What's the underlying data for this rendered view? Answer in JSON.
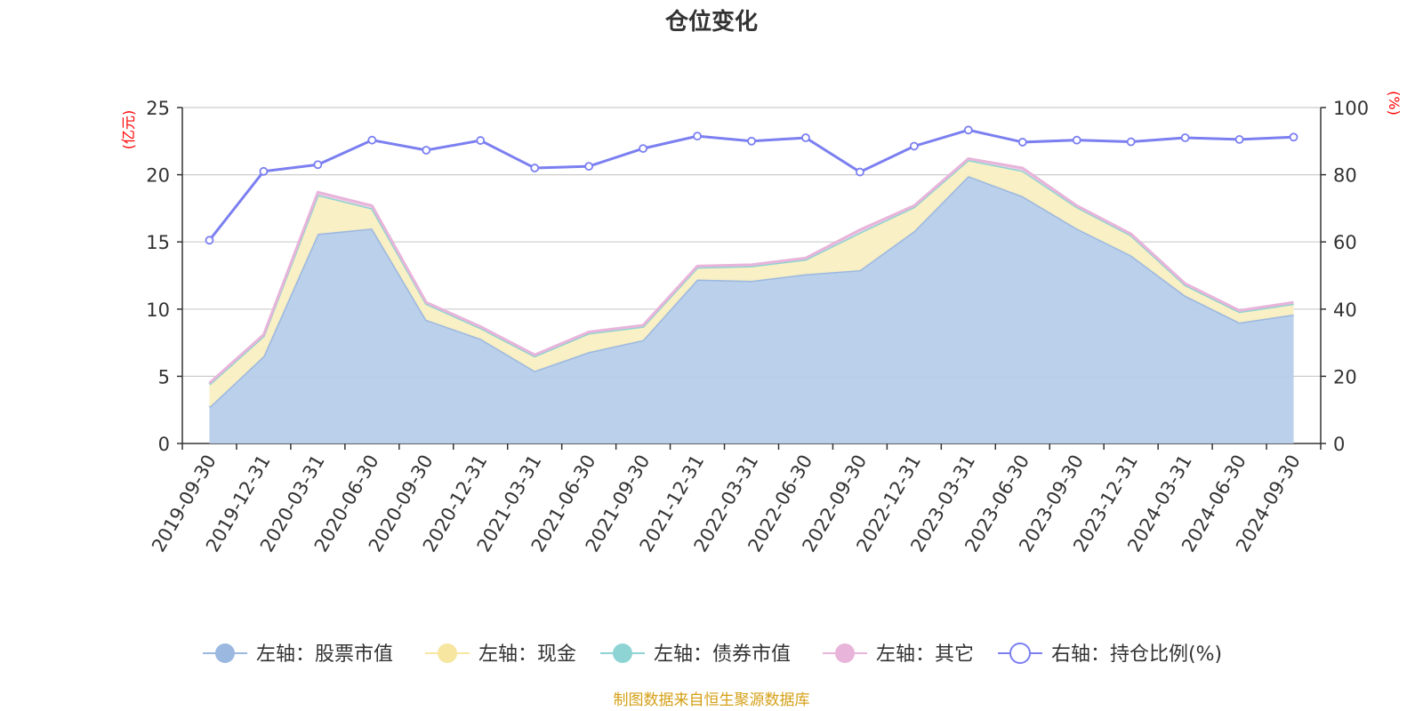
{
  "chart_data": {
    "type": "area",
    "title": "仓位变化",
    "left_axis": {
      "unit": "(亿元)",
      "ylim": [
        0,
        25
      ],
      "ticks": [
        "0",
        "5",
        "10",
        "15",
        "20",
        "25"
      ]
    },
    "right_axis": {
      "unit": "(%)",
      "ylim": [
        0,
        100
      ],
      "ticks": [
        "0",
        "20",
        "40",
        "60",
        "80",
        "100"
      ]
    },
    "categories": [
      "2019-09-30",
      "2019-12-31",
      "2020-03-31",
      "2020-06-30",
      "2020-09-30",
      "2020-12-31",
      "2021-03-31",
      "2021-06-30",
      "2021-09-30",
      "2021-12-31",
      "2022-03-31",
      "2022-06-30",
      "2022-09-30",
      "2022-12-31",
      "2023-03-31",
      "2023-06-30",
      "2023-09-30",
      "2023-12-31",
      "2024-03-31",
      "2024-06-30",
      "2024-09-30"
    ],
    "series": [
      {
        "name": "左轴：股票市值",
        "axis": "left",
        "kind": "stacked-area",
        "color": "#9bb8e0",
        "fill": "#b7cdea",
        "values": [
          2.7,
          6.5,
          15.6,
          16.0,
          9.2,
          7.8,
          5.4,
          6.8,
          7.7,
          12.2,
          12.1,
          12.6,
          12.9,
          15.8,
          19.9,
          18.4,
          16.0,
          14.0,
          11.0,
          9.0,
          9.6
        ]
      },
      {
        "name": "左轴：现金",
        "axis": "left",
        "kind": "stacked-area",
        "color": "#f7e6a0",
        "fill": "#faefc2",
        "values": [
          1.7,
          1.5,
          2.9,
          1.5,
          1.2,
          0.8,
          1.1,
          1.4,
          1.0,
          0.9,
          1.1,
          1.1,
          2.8,
          1.8,
          1.2,
          1.9,
          1.6,
          1.5,
          0.8,
          0.8,
          0.8
        ]
      },
      {
        "name": "左轴：债券市值",
        "axis": "left",
        "kind": "stacked-area",
        "color": "#8ed4d4",
        "fill": "#8ed4d4",
        "values": [
          0,
          0,
          0,
          0,
          0,
          0,
          0,
          0,
          0,
          0,
          0,
          0,
          0,
          0,
          0,
          0,
          0,
          0,
          0,
          0,
          0
        ]
      },
      {
        "name": "左轴：其它",
        "axis": "left",
        "kind": "stacked-area",
        "color": "#e8b4da",
        "fill": "#f1cfe6",
        "values": [
          0.1,
          0.1,
          0.2,
          0.2,
          0.1,
          0.1,
          0.1,
          0.1,
          0.1,
          0.1,
          0.1,
          0.1,
          0.2,
          0.1,
          0.1,
          0.2,
          0.1,
          0.1,
          0.1,
          0.1,
          0.1
        ]
      },
      {
        "name": "右轴：持仓比例(%)",
        "axis": "right",
        "kind": "line",
        "color": "#7b7ff0",
        "values": [
          60.5,
          81.0,
          83.0,
          90.3,
          87.3,
          90.2,
          82.0,
          82.5,
          87.8,
          91.5,
          90.0,
          91.0,
          80.8,
          88.5,
          93.3,
          89.7,
          90.3,
          89.8,
          91.0,
          90.5,
          91.2
        ]
      }
    ],
    "grid": true,
    "legend_position": "bottom"
  },
  "footer": {
    "source": "制图数据来自恒生聚源数据库"
  }
}
